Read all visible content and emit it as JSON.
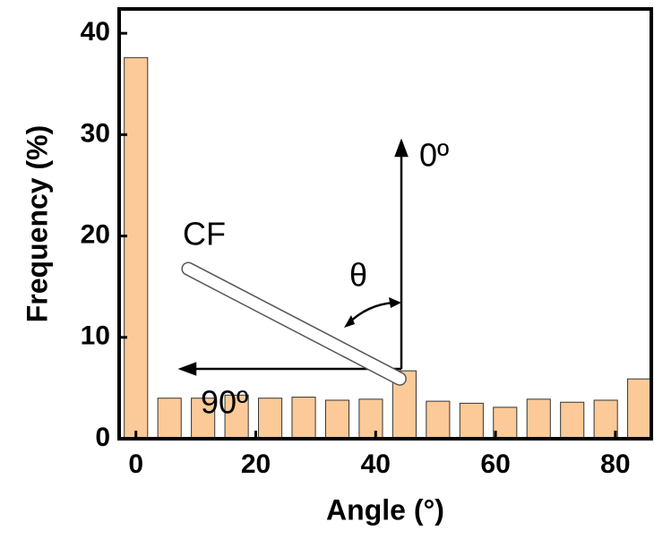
{
  "chart_data": {
    "type": "bar",
    "x_label": "Angle (°)",
    "y_label": "Frequency (%)",
    "x": [
      0,
      5.6,
      11.2,
      16.8,
      22.4,
      28,
      33.6,
      39.2,
      44.8,
      50.4,
      56,
      61.6,
      67.2,
      72.8,
      78.4,
      84
    ],
    "values": [
      37.6,
      4.0,
      4.0,
      4.3,
      4.0,
      4.1,
      3.8,
      3.9,
      6.7,
      3.7,
      3.5,
      3.1,
      3.9,
      3.6,
      3.8,
      5.9
    ],
    "color": "#fcca98",
    "xlim": [
      -2.8,
      86
    ],
    "xticks": [
      0,
      20,
      40,
      60,
      80
    ],
    "ylim": [
      0,
      42.4
    ],
    "yticks": [
      0,
      10,
      20,
      30,
      40
    ],
    "annotations": {
      "up": "0º",
      "left": "90º",
      "angle": "θ",
      "fiber": "CF"
    }
  }
}
